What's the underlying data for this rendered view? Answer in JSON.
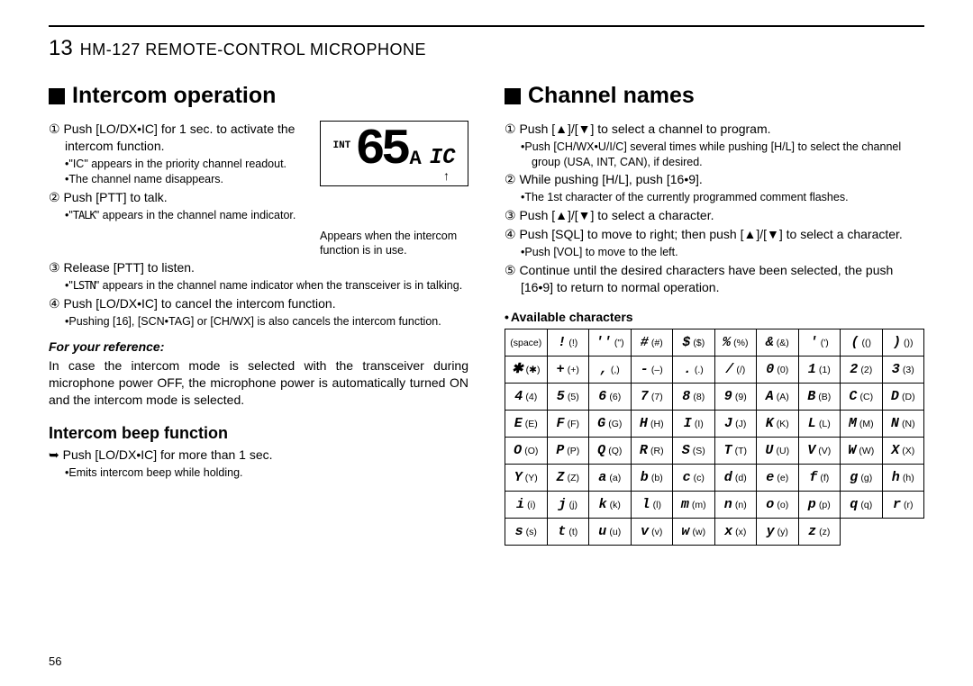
{
  "chapter": {
    "num": "13",
    "title": "HM-127 REMOTE-CONTROL MICROPHONE"
  },
  "left": {
    "heading": "Intercom operation",
    "step1": "① Push [LO/DX•IC] for 1 sec. to activate the intercom function.",
    "note1a": "•\"IC\" appears in the priority channel readout.",
    "note1b": "•The channel name disappears.",
    "step2": "② Push [PTT] to talk.",
    "note2a": "•\"TALK\" appears in the channel name indicator.",
    "step3": "③ Release [PTT] to listen.",
    "note3a": "•\"LSTN\" appears in the channel name indicator when the transceiver is in talking.",
    "step4": "④ Push [LO/DX•IC] to cancel the intercom function.",
    "note4a": "•Pushing [16], [SCN•TAG] or [CH/WX] is also cancels the intercom function.",
    "ref_label": "For your reference:",
    "ref_text": "In case the intercom mode is selected with the transceiver during microphone power OFF, the microphone power is automatically turned ON and the intercom mode is selected.",
    "beep_h": "Intercom beep function",
    "beep_step": "➥ Push [LO/DX•IC] for more than 1 sec.",
    "beep_note": "•Emits intercom beep while holding.",
    "lcd": {
      "int": "INT",
      "big": "65",
      "a": "A",
      "ic": "IC",
      "caption": "Appears when the intercom function is in use."
    }
  },
  "right": {
    "heading": "Channel names",
    "step1": "① Push [▲]/[▼] to select a channel to program.",
    "note1a": "•Push [CH/WX•U/I/C] several times while pushing [H/L] to select the channel group (USA, INT, CAN), if desired.",
    "step2": "② While pushing [H/L], push [16•9].",
    "note2a": "•The 1st character of the currently programmed comment flashes.",
    "step3": "③ Push [▲]/[▼] to select a character.",
    "step4": "④ Push [SQL] to move to right; then push [▲]/[▼] to select a character.",
    "note4a": "•Push [VOL] to move to the left.",
    "step5": "⑤ Continue until the desired characters have been selected, the push [16•9] to return to normal operation.",
    "avail_h": "Available characters",
    "chars": [
      [
        "(space)",
        "(!)",
        "(\")",
        "(#)",
        "($)",
        "(%)",
        "(&)",
        "(')",
        "(()",
        "())"
      ],
      [
        "(✱)",
        "(+)",
        "(,)",
        "(–)",
        "(.)",
        "(/)",
        "(0)",
        "(1)",
        "(2)",
        "(3)"
      ],
      [
        "(4)",
        "(5)",
        "(6)",
        "(7)",
        "(8)",
        "(9)",
        "(A)",
        "(B)",
        "(C)",
        "(D)"
      ],
      [
        "(E)",
        "(F)",
        "(G)",
        "(H)",
        "(I)",
        "(J)",
        "(K)",
        "(L)",
        "(M)",
        "(N)"
      ],
      [
        "(O)",
        "(P)",
        "(Q)",
        "(R)",
        "(S)",
        "(T)",
        "(U)",
        "(V)",
        "(W)",
        "(X)"
      ],
      [
        "(Y)",
        "(Z)",
        "(a)",
        "(b)",
        "(c)",
        "(d)",
        "(e)",
        "(f)",
        "(g)",
        "(h)"
      ],
      [
        "(i)",
        "(j)",
        "(k)",
        "(l)",
        "(m)",
        "(n)",
        "(o)",
        "(p)",
        "(q)",
        "(r)"
      ],
      [
        "(s)",
        "(t)",
        "(u)",
        "(v)",
        "(w)",
        "(x)",
        "(y)",
        "(z)",
        "",
        ""
      ]
    ],
    "glyphs": [
      [
        "",
        "!",
        "''",
        "#",
        "$",
        "%",
        "&",
        "'",
        "(",
        ")"
      ],
      [
        "✱",
        "+",
        ",",
        "-",
        ".",
        "/",
        "0",
        "1",
        "2",
        "3"
      ],
      [
        "4",
        "5",
        "6",
        "7",
        "8",
        "9",
        "A",
        "B",
        "C",
        "D"
      ],
      [
        "E",
        "F",
        "G",
        "H",
        "I",
        "J",
        "K",
        "L",
        "M",
        "N"
      ],
      [
        "O",
        "P",
        "Q",
        "R",
        "S",
        "T",
        "U",
        "V",
        "W",
        "X"
      ],
      [
        "Y",
        "Z",
        "a",
        "b",
        "c",
        "d",
        "e",
        "f",
        "g",
        "h"
      ],
      [
        "i",
        "j",
        "k",
        "l",
        "m",
        "n",
        "o",
        "p",
        "q",
        "r"
      ],
      [
        "s",
        "t",
        "u",
        "v",
        "w",
        "x",
        "y",
        "z",
        "",
        ""
      ]
    ]
  },
  "page": "56",
  "colors": {
    "text": "#000000",
    "bg": "#ffffff"
  }
}
